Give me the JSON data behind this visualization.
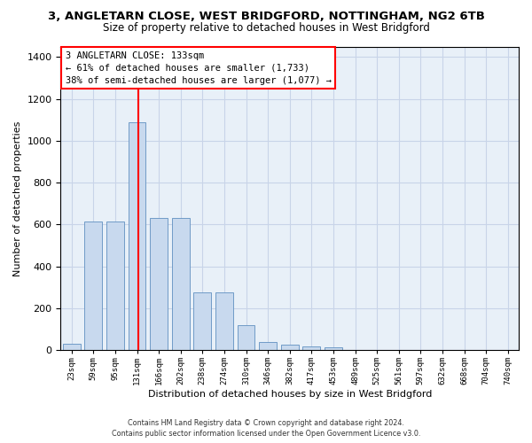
{
  "title": "3, ANGLETARN CLOSE, WEST BRIDGFORD, NOTTINGHAM, NG2 6TB",
  "subtitle": "Size of property relative to detached houses in West Bridgford",
  "xlabel": "Distribution of detached houses by size in West Bridgford",
  "ylabel": "Number of detached properties",
  "bar_color": "#c8d9ee",
  "bar_edge_color": "#6090c0",
  "x_labels": [
    "23sqm",
    "59sqm",
    "95sqm",
    "131sqm",
    "166sqm",
    "202sqm",
    "238sqm",
    "274sqm",
    "310sqm",
    "346sqm",
    "382sqm",
    "417sqm",
    "453sqm",
    "489sqm",
    "525sqm",
    "561sqm",
    "597sqm",
    "632sqm",
    "668sqm",
    "704sqm",
    "740sqm"
  ],
  "bar_heights": [
    30,
    615,
    615,
    1090,
    630,
    630,
    275,
    275,
    120,
    40,
    25,
    20,
    12,
    0,
    0,
    0,
    0,
    0,
    0,
    0,
    0
  ],
  "red_line_bin_index": 3,
  "annotation_line1": "3 ANGLETARN CLOSE: 133sqm",
  "annotation_line2": "← 61% of detached houses are smaller (1,733)",
  "annotation_line3": "38% of semi-detached houses are larger (1,077) →",
  "annotation_box_facecolor": "white",
  "annotation_box_edgecolor": "red",
  "red_line_color": "red",
  "ylim": [
    0,
    1450
  ],
  "yticks": [
    0,
    200,
    400,
    600,
    800,
    1000,
    1200,
    1400
  ],
  "grid_color": "#c8d4e8",
  "bg_color": "#e8f0f8",
  "footer_line1": "Contains HM Land Registry data © Crown copyright and database right 2024.",
  "footer_line2": "Contains public sector information licensed under the Open Government Licence v3.0."
}
